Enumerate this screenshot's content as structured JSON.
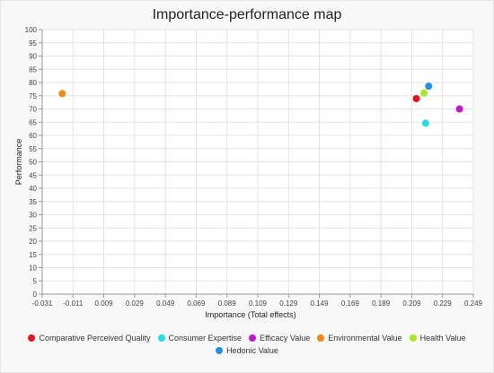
{
  "chart_data": {
    "type": "scatter",
    "title": "Importance-performance map",
    "xlabel": "Importance (Total effects)",
    "ylabel": "Performance",
    "xlim": [
      -0.031,
      0.249
    ],
    "ylim": [
      0,
      100
    ],
    "x_ticks": [
      "-0.031",
      "-0.011",
      "0.009",
      "0.029",
      "0.049",
      "0.069",
      "0.089",
      "0.109",
      "0.129",
      "0.149",
      "0.169",
      "0.189",
      "0.209",
      "0.229",
      "0.249"
    ],
    "y_ticks": [
      "0",
      "5",
      "10",
      "15",
      "20",
      "25",
      "30",
      "35",
      "40",
      "45",
      "50",
      "55",
      "60",
      "65",
      "70",
      "75",
      "80",
      "85",
      "90",
      "95",
      "100"
    ],
    "grid": true,
    "legend_position": "bottom",
    "series": [
      {
        "name": "Comparative Perceived Quality",
        "color": "#e8141b",
        "points": [
          {
            "x": 0.212,
            "y": 73.9
          }
        ]
      },
      {
        "name": "Consumer Expertise",
        "color": "#22dde3",
        "points": [
          {
            "x": 0.218,
            "y": 64.6
          }
        ]
      },
      {
        "name": "Efficacy Value",
        "color": "#c219c9",
        "points": [
          {
            "x": 0.24,
            "y": 70.0
          }
        ]
      },
      {
        "name": "Environmental Value",
        "color": "#ee8a16",
        "points": [
          {
            "x": -0.018,
            "y": 75.8
          }
        ]
      },
      {
        "name": "Health Value",
        "color": "#a4e82b",
        "points": [
          {
            "x": 0.217,
            "y": 76.0
          }
        ]
      },
      {
        "name": "Hedonic Value",
        "color": "#2291e3",
        "points": [
          {
            "x": 0.22,
            "y": 78.6
          }
        ]
      }
    ]
  }
}
